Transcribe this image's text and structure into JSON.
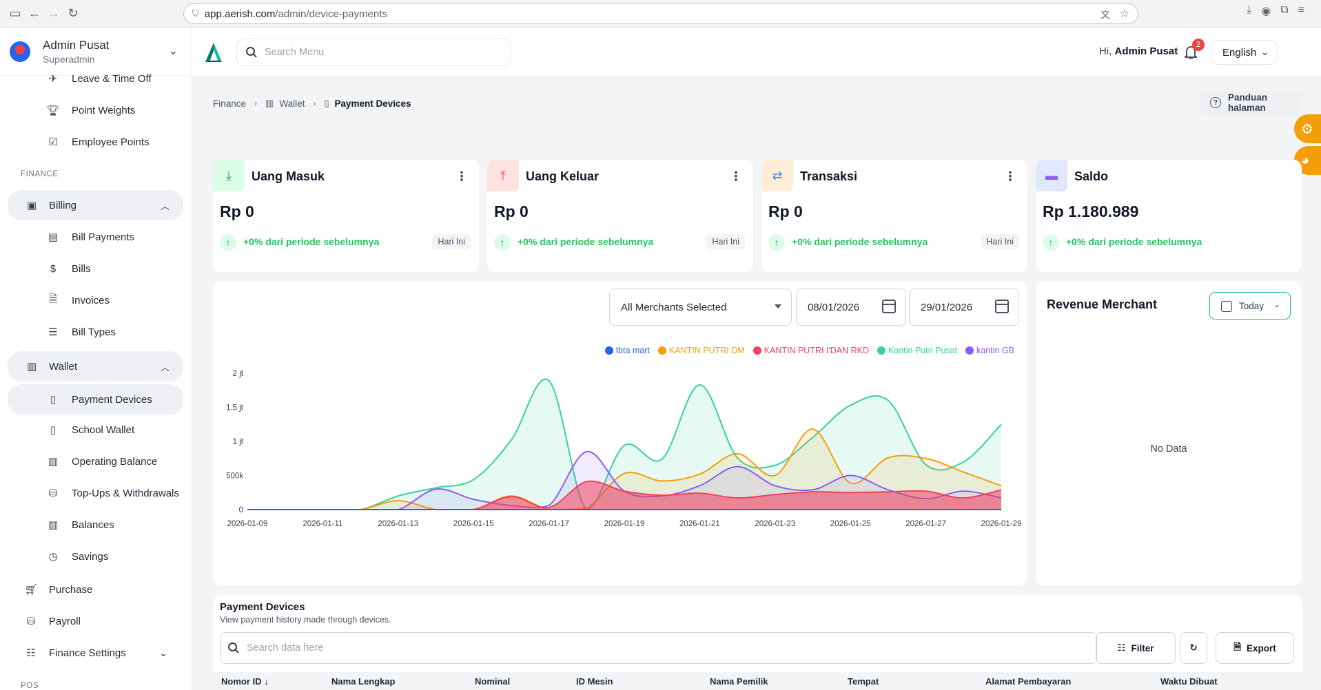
{
  "browser": {
    "url_host": "app.aerish.com",
    "url_path": "/admin/device-payments"
  },
  "profile": {
    "name": "Admin Pusat",
    "role": "Superadmin"
  },
  "sidebar": {
    "items_top": [
      {
        "label": "Leave & Time Off",
        "icon": "plane-icon"
      },
      {
        "label": "Point Weights",
        "icon": "trophy-icon"
      },
      {
        "label": "Employee Points",
        "icon": "clipboard-icon"
      }
    ],
    "section_finance": "FINANCE",
    "billing": {
      "label": "Billing",
      "icon": "billing-icon"
    },
    "billing_items": [
      {
        "label": "Bill Payments",
        "icon": "money-icon"
      },
      {
        "label": "Bills",
        "icon": "dollar-icon"
      },
      {
        "label": "Invoices",
        "icon": "invoice-icon"
      },
      {
        "label": "Bill Types",
        "icon": "list-icon"
      }
    ],
    "wallet": {
      "label": "Wallet",
      "icon": "wallet-icon"
    },
    "wallet_items": [
      {
        "label": "Payment Devices",
        "icon": "device-icon"
      },
      {
        "label": "School Wallet",
        "icon": "school-wallet-icon"
      },
      {
        "label": "Operating Balance",
        "icon": "wallet-icon"
      },
      {
        "label": "Top-Ups & Withdrawals",
        "icon": "coins-icon"
      },
      {
        "label": "Balances",
        "icon": "wallet-icon"
      },
      {
        "label": "Savings",
        "icon": "clock-icon"
      }
    ],
    "purchase": "Purchase",
    "payroll": "Payroll",
    "finance_settings": "Finance Settings",
    "section_pos": "POS"
  },
  "header": {
    "search_placeholder": "Search Menu",
    "greeting_prefix": "Hi,",
    "greeting_name": "Admin Pusat",
    "notif_count": "2",
    "language": "English"
  },
  "breadcrumb": {
    "finance": "Finance",
    "wallet": "Wallet",
    "current": "Payment Devices"
  },
  "guide_label": "Panduan halaman",
  "cards": [
    {
      "title": "Uang Masuk",
      "amount": "Rp 0",
      "delta": "+0% dari periode sebelumnya",
      "period": "Hari Ini",
      "icon_bg": "#dcfce7",
      "icon_color": "#16a34a"
    },
    {
      "title": "Uang Keluar",
      "amount": "Rp 0",
      "delta": "+0% dari periode sebelumnya",
      "period": "Hari Ini",
      "icon_bg": "#fee2e2",
      "icon_color": "#ef4444"
    },
    {
      "title": "Transaksi",
      "amount": "Rp 0",
      "delta": "+0% dari periode sebelumnya",
      "period": "Hari Ini",
      "icon_bg": "#ffedd5",
      "icon_color": "#3b82f6"
    },
    {
      "title": "Saldo",
      "amount": "Rp 1.180.989",
      "delta": "+0% dari periode sebelumnya",
      "period": "",
      "icon_bg": "#e0e7ff",
      "icon_color": "#8b5cf6"
    }
  ],
  "filters": {
    "merchant": "All Merchants Selected",
    "date_from": "08/01/2026",
    "date_to": "29/01/2026"
  },
  "chart_data": {
    "type": "area",
    "x": [
      "2026-01-09",
      "2026-01-10",
      "2026-01-11",
      "2026-01-12",
      "2026-01-13",
      "2026-01-14",
      "2026-01-15",
      "2026-01-16",
      "2026-01-17",
      "2026-01-18",
      "2026-01-19",
      "2026-01-20",
      "2026-01-21",
      "2026-01-22",
      "2026-01-23",
      "2026-01-24",
      "2026-01-25",
      "2026-01-26",
      "2026-01-27",
      "2026-01-28",
      "2026-01-29"
    ],
    "tick_labels": [
      "2026-01-09",
      "2026-01-11",
      "2026-01-13",
      "2026-01-15",
      "2026-01-17",
      "2026-01-19",
      "2026-01-21",
      "2026-01-23",
      "2026-01-25",
      "2026-01-27",
      "2026-01-29"
    ],
    "y_ticks": [
      "0",
      "500k",
      "1 jt",
      "1.5 jt",
      "2 jt"
    ],
    "ylim": [
      0,
      2000000
    ],
    "series": [
      {
        "name": "Ibta mart",
        "color": "#2563eb",
        "values": [
          0,
          0,
          0,
          0,
          0,
          0,
          0,
          0,
          0,
          0,
          0,
          0,
          0,
          0,
          0,
          0,
          0,
          0,
          0,
          0,
          0
        ]
      },
      {
        "name": "KANTIN PUTRI DM",
        "color": "#f59e0b",
        "values": [
          0,
          0,
          0,
          0,
          130000,
          0,
          0,
          200000,
          0,
          20000,
          530000,
          420000,
          520000,
          820000,
          500000,
          1180000,
          390000,
          760000,
          750000,
          550000,
          350000
        ]
      },
      {
        "name": "KANTIN PUTRI I'DAN RKD",
        "color": "#f43f5e",
        "values": [
          0,
          0,
          0,
          0,
          0,
          0,
          0,
          190000,
          30000,
          410000,
          270000,
          210000,
          240000,
          170000,
          220000,
          260000,
          250000,
          260000,
          270000,
          170000,
          290000
        ]
      },
      {
        "name": "Kantin Putri Pusat",
        "color": "#34d399",
        "values": [
          0,
          0,
          0,
          0,
          200000,
          320000,
          440000,
          1020000,
          1890000,
          0,
          940000,
          740000,
          1830000,
          760000,
          650000,
          1060000,
          1530000,
          1600000,
          660000,
          700000,
          1250000
        ]
      },
      {
        "name": "kantin GB",
        "color": "#8b5cf6",
        "values": [
          0,
          0,
          0,
          0,
          0,
          300000,
          150000,
          60000,
          60000,
          850000,
          270000,
          200000,
          350000,
          630000,
          350000,
          290000,
          500000,
          290000,
          160000,
          270000,
          170000
        ]
      }
    ]
  },
  "revenue": {
    "title": "Revenue Merchant",
    "range": "Today",
    "empty": "No Data"
  },
  "payment_devices": {
    "title": "Payment Devices",
    "subtitle": "View payment history made through devices.",
    "search_placeholder": "Search data here",
    "filter_label": "Filter",
    "export_label": "Export",
    "columns": [
      "Nomor ID",
      "Nama Lengkap",
      "Nominal",
      "ID Mesin",
      "Nama Pemilik",
      "Tempat",
      "Alamat Pembayaran",
      "Waktu Dibuat"
    ]
  }
}
